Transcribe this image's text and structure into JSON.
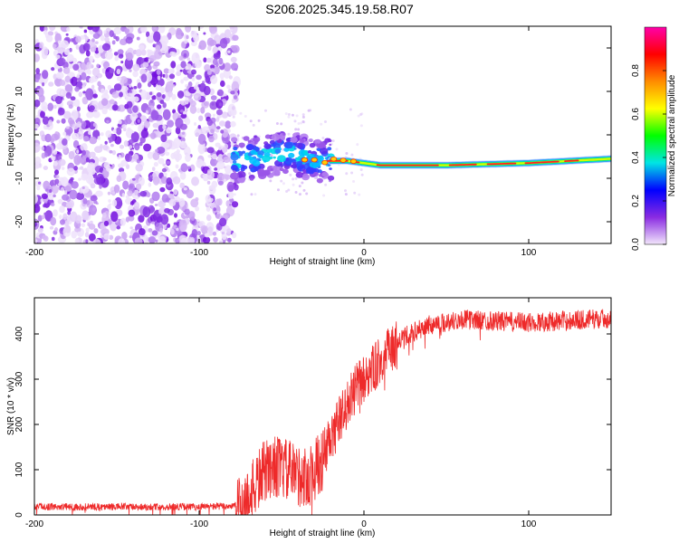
{
  "title": "S206.2025.345.19.58.R07",
  "chart_data": [
    {
      "type": "heatmap",
      "name": "spectrogram",
      "xlabel": "Height of straight line (km)",
      "ylabel": "Frequency (Hz)",
      "xlim": [
        -200,
        150
      ],
      "ylim": [
        -25,
        25
      ],
      "xticks": [
        -200,
        -100,
        0,
        100
      ],
      "yticks": [
        -20,
        -10,
        0,
        10,
        20
      ],
      "noise_region_x": [
        -200,
        -77
      ],
      "transition_region_x": [
        -80,
        -20
      ],
      "signal_region_x": [
        -20,
        150
      ],
      "signal_track": [
        {
          "x": -78,
          "y": -6
        },
        {
          "x": -60,
          "y": -5
        },
        {
          "x": -45,
          "y": -4
        },
        {
          "x": -30,
          "y": -6
        },
        {
          "x": -20,
          "y": -6
        },
        {
          "x": -10,
          "y": -6
        },
        {
          "x": 0,
          "y": -6.5
        },
        {
          "x": 10,
          "y": -7
        },
        {
          "x": 50,
          "y": -7
        },
        {
          "x": 100,
          "y": -6.5
        },
        {
          "x": 150,
          "y": -5.5
        }
      ],
      "colorbar": {
        "label": "Normalized spectral amplitude",
        "range": [
          0,
          1
        ],
        "ticks": [
          "0.0",
          "0.2",
          "0.4",
          "0.6",
          "0.8"
        ],
        "colors": [
          "#f2e6fb",
          "#8a2be2",
          "#0000ff",
          "#00e5e5",
          "#00ff00",
          "#ffff00",
          "#ff8c00",
          "#ff0000",
          "#ff00aa"
        ]
      }
    },
    {
      "type": "line",
      "name": "snr",
      "xlabel": "Height of straight line (km)",
      "ylabel": "SNR (10 * v/v)",
      "xlim": [
        -200,
        150
      ],
      "ylim": [
        0,
        480
      ],
      "xticks": [
        -200,
        -100,
        0,
        100
      ],
      "yticks": [
        0,
        100,
        200,
        300,
        400
      ],
      "color": "#ee2a2a",
      "trend": [
        {
          "x": -200,
          "y": 18
        },
        {
          "x": -100,
          "y": 18
        },
        {
          "x": -78,
          "y": 20
        },
        {
          "x": -70,
          "y": 35
        },
        {
          "x": -62,
          "y": 90
        },
        {
          "x": -55,
          "y": 110
        },
        {
          "x": -45,
          "y": 95
        },
        {
          "x": -35,
          "y": 80
        },
        {
          "x": -25,
          "y": 120
        },
        {
          "x": -15,
          "y": 210
        },
        {
          "x": -5,
          "y": 280
        },
        {
          "x": 5,
          "y": 320
        },
        {
          "x": 15,
          "y": 360
        },
        {
          "x": 25,
          "y": 395
        },
        {
          "x": 40,
          "y": 420
        },
        {
          "x": 60,
          "y": 432
        },
        {
          "x": 100,
          "y": 425
        },
        {
          "x": 150,
          "y": 435
        }
      ]
    }
  ]
}
